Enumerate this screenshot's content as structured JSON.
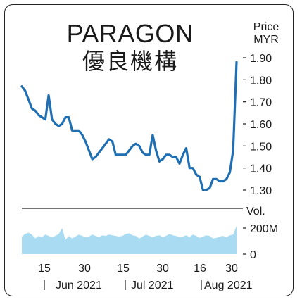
{
  "header": {
    "title": "PARAGON",
    "subtitle": "優良機構"
  },
  "price_axis": {
    "unit_line1": "Price",
    "unit_line2": "MYR"
  },
  "volume_axis": {
    "label": "Vol."
  },
  "colors": {
    "line": "#1f6fb2",
    "volume_fill": "#a9dcf2",
    "axis": "#222222"
  },
  "chart_data": [
    {
      "type": "line",
      "title": "PARAGON 優良機構",
      "ylabel": "Price MYR",
      "ylim": [
        1.25,
        1.93
      ],
      "yticks": [
        1.3,
        1.4,
        1.5,
        1.6,
        1.7,
        1.8,
        1.9
      ],
      "ytick_labels": [
        "1.30",
        "1.40",
        "1.50",
        "1.60",
        "1.70",
        "1.80",
        "1.90"
      ],
      "grid": false,
      "series": [
        {
          "values": [
            1.77,
            1.75,
            1.71,
            1.67,
            1.66,
            1.64,
            1.63,
            1.62,
            1.73,
            1.62,
            1.6,
            1.59,
            1.6,
            1.63,
            1.63,
            1.57,
            1.57,
            1.57,
            1.55,
            1.52,
            1.48,
            1.44,
            1.45,
            1.47,
            1.49,
            1.51,
            1.53,
            1.52,
            1.46,
            1.46,
            1.46,
            1.46,
            1.48,
            1.5,
            1.51,
            1.5,
            1.47,
            1.46,
            1.46,
            1.55,
            1.48,
            1.43,
            1.44,
            1.46,
            1.46,
            1.45,
            1.45,
            1.42,
            1.46,
            1.49,
            1.4,
            1.4,
            1.37,
            1.36,
            1.3,
            1.3,
            1.31,
            1.35,
            1.35,
            1.34,
            1.34,
            1.35,
            1.38,
            1.48,
            1.88
          ]
        }
      ]
    },
    {
      "type": "area",
      "ylabel": "Vol.",
      "ylim": [
        0,
        200
      ],
      "yticks": [
        0,
        200
      ],
      "ytick_labels": [
        "0",
        "200M"
      ],
      "x_tick_labels": [
        "15",
        "30",
        "15",
        "30",
        "16",
        "30"
      ],
      "x_group_labels": [
        "Jun 2021",
        "Jul 2021",
        "Aug 2021"
      ],
      "series": [
        {
          "values": [
            135,
            155,
            165,
            150,
            120,
            140,
            130,
            150,
            140,
            130,
            140,
            155,
            200,
            110,
            140,
            120,
            135,
            150,
            140,
            130,
            135,
            150,
            140,
            130,
            145,
            140,
            150,
            145,
            140,
            135,
            140,
            155,
            160,
            145,
            140,
            120,
            135,
            150,
            140,
            130,
            140,
            145,
            130,
            140,
            155,
            145,
            140,
            130,
            135,
            145,
            130,
            150,
            140,
            125,
            135,
            145,
            140,
            120,
            125,
            135,
            140,
            130,
            145,
            150,
            215
          ]
        }
      ]
    }
  ]
}
